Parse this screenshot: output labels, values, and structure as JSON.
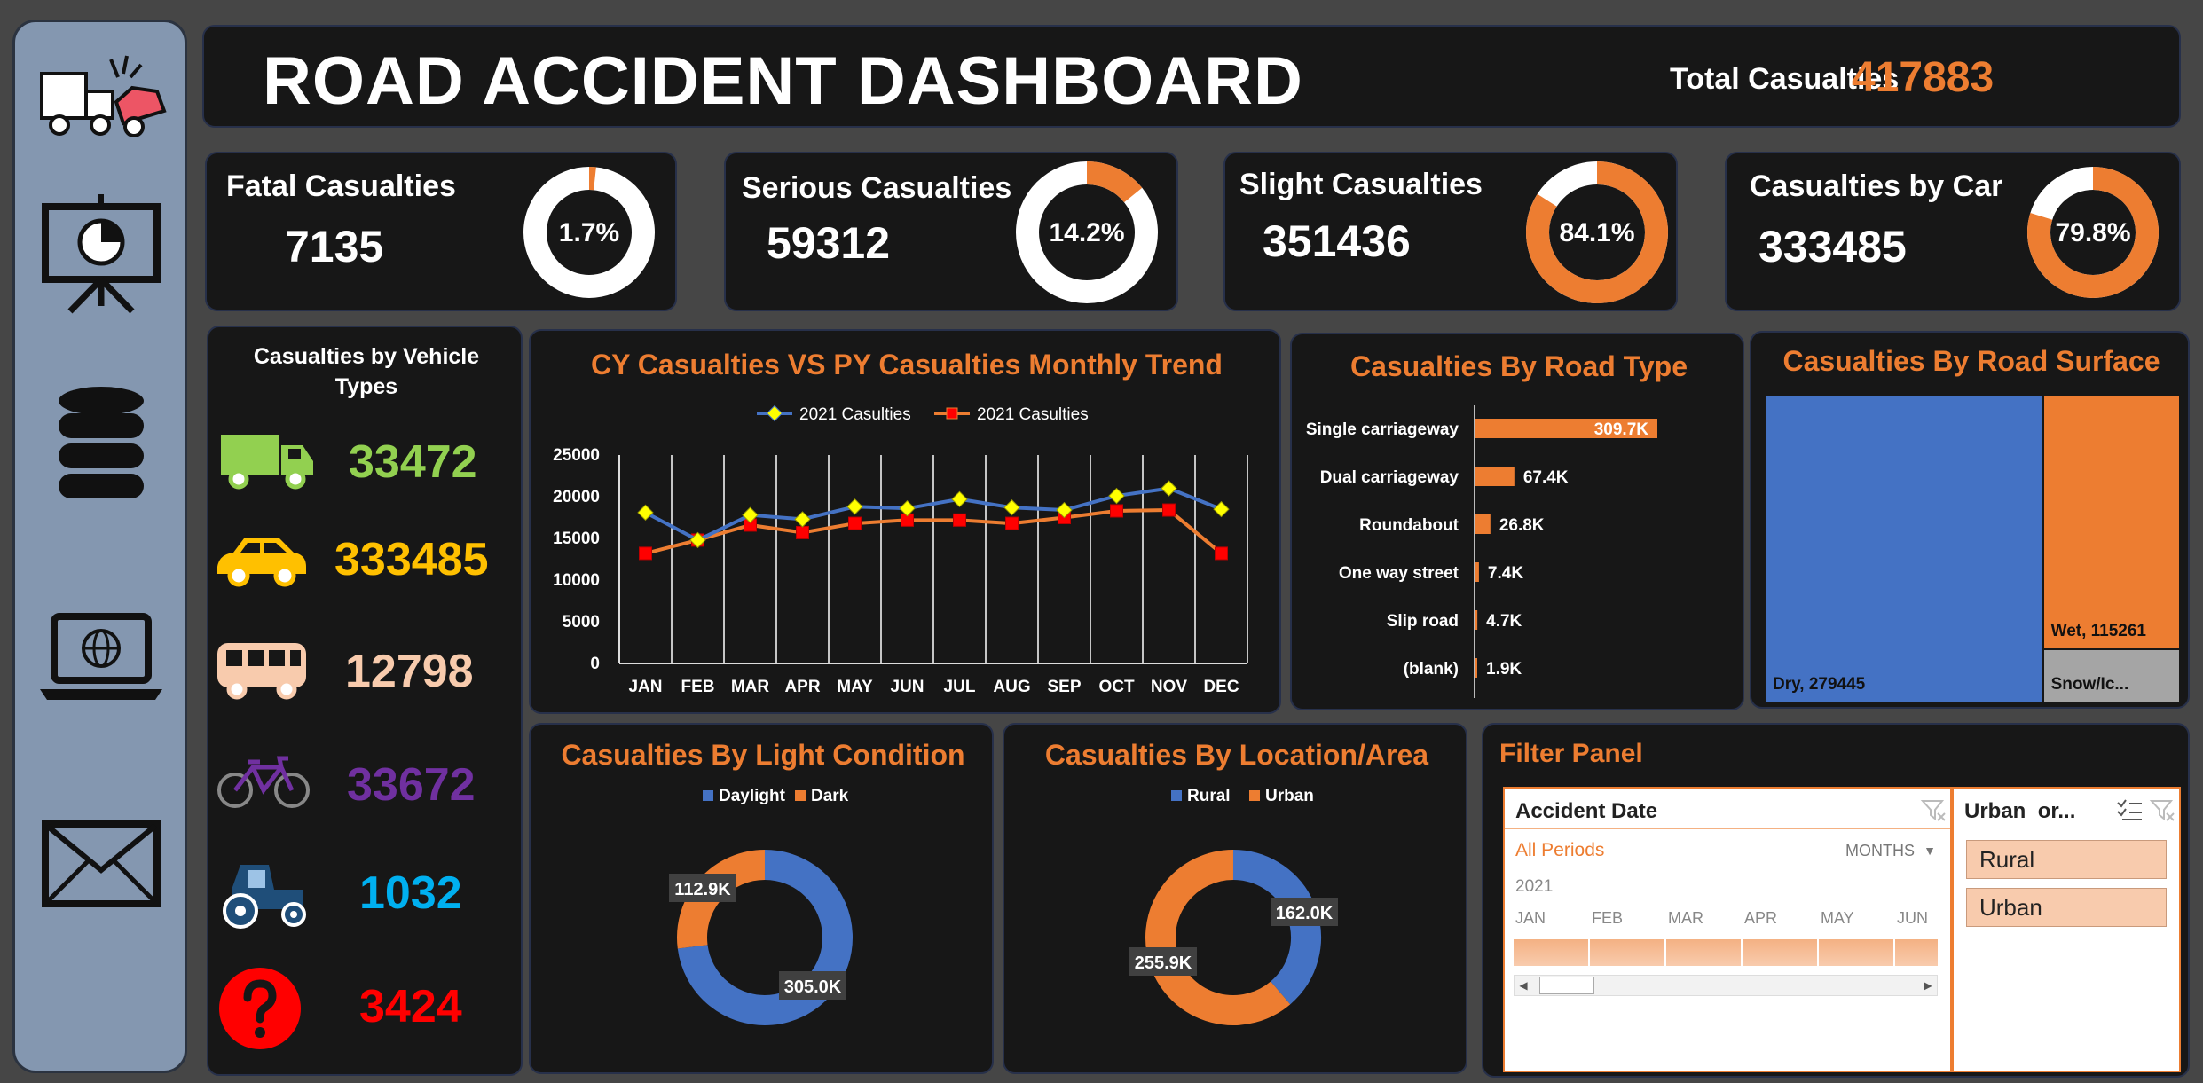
{
  "header": {
    "title": "ROAD ACCIDENT DASHBOARD",
    "total_label": "Total Casualties",
    "total_value": "417883"
  },
  "sidebar": {
    "icons": [
      "car-crash-icon",
      "presentation-chart-icon",
      "database-icon",
      "laptop-globe-icon",
      "mail-icon"
    ]
  },
  "kpis": [
    {
      "label": "Fatal Casualties",
      "value": "7135",
      "pct_label": "1.7%",
      "pct": 0.017,
      "color": "#ED7D31"
    },
    {
      "label": "Serious Casualties",
      "value": "59312",
      "pct_label": "14.2%",
      "pct": 0.142,
      "color": "#ED7D31"
    },
    {
      "label": "Slight Casualties",
      "value": "351436",
      "pct_label": "84.1%",
      "pct": 0.841,
      "color": "#ED7D31"
    },
    {
      "label": "Casualties by Car",
      "value": "333485",
      "pct_label": "79.8%",
      "pct": 0.798,
      "color": "#ED7D31"
    }
  ],
  "vehicles": {
    "title": "Casualties by Vehicle Types",
    "items": [
      {
        "icon": "truck-icon",
        "value": "33472",
        "color": "#92D050"
      },
      {
        "icon": "car-icon",
        "value": "333485",
        "color": "#FFC000"
      },
      {
        "icon": "bus-icon",
        "value": "12798",
        "color": "#F8CBAD"
      },
      {
        "icon": "bicycle-icon",
        "value": "33672",
        "color": "#7030A0"
      },
      {
        "icon": "tractor-icon",
        "value": "1032",
        "color": "#00B0F0"
      },
      {
        "icon": "question-icon",
        "value": "3424",
        "color": "#FF0000"
      }
    ]
  },
  "trend": {
    "title": "CY Casualties VS PY Casualties Monthly Trend",
    "chart_data": {
      "type": "line",
      "categories": [
        "JAN",
        "FEB",
        "MAR",
        "APR",
        "MAY",
        "JUN",
        "JUL",
        "AUG",
        "SEP",
        "OCT",
        "NOV",
        "DEC"
      ],
      "series": [
        {
          "name": "2021 Casulties",
          "color": "#4472C4",
          "marker_color": "#FFFF00",
          "values": [
            18100,
            14800,
            17800,
            17300,
            18800,
            18600,
            19700,
            18700,
            18400,
            20100,
            21000,
            18500
          ]
        },
        {
          "name": "2021 Casulties",
          "color": "#ED7D31",
          "marker_color": "#FF0000",
          "values": [
            13200,
            14800,
            16600,
            15700,
            16800,
            17200,
            17200,
            16800,
            17500,
            18300,
            18400,
            13200
          ]
        }
      ],
      "ylim": [
        0,
        25000
      ],
      "yticks": [
        "0",
        "5000",
        "10000",
        "15000",
        "20000",
        "25000"
      ],
      "grid": "vertical",
      "legend": "top"
    }
  },
  "road_type": {
    "title": "Casualties By Road Type",
    "chart_data": {
      "type": "bar",
      "orientation": "horizontal",
      "categories": [
        "Single carriageway",
        "Dual carriageway",
        "Roundabout",
        "One way street",
        "Slip road",
        "(blank)"
      ],
      "values": [
        309.7,
        67.4,
        26.8,
        7.4,
        4.7,
        1.9
      ],
      "labels": [
        "309.7K",
        "67.4K",
        "26.8K",
        "7.4K",
        "4.7K",
        "1.9K"
      ],
      "color": "#ED7D31"
    }
  },
  "road_surface": {
    "title": "Casualties By Road Surface",
    "chart_data": {
      "type": "treemap",
      "items": [
        {
          "name": "Dry",
          "value": 279445,
          "label": "Dry, 279445",
          "color": "#4472C4"
        },
        {
          "name": "Wet",
          "value": 115261,
          "label": "Wet, 115261",
          "color": "#ED7D31"
        },
        {
          "name": "Snow/Ice",
          "value": 23177,
          "label": "Snow/Ic...",
          "color": "#A5A5A5"
        }
      ]
    }
  },
  "light": {
    "title": "Casualties By Light Condition",
    "chart_data": {
      "type": "pie",
      "categories": [
        "Daylight",
        "Dark"
      ],
      "values": [
        305.0,
        112.9
      ],
      "labels": [
        "305.0K",
        "112.9K"
      ],
      "colors": [
        "#4472C4",
        "#ED7D31"
      ],
      "legend": "top"
    }
  },
  "location": {
    "title": "Casualties By Location/Area",
    "chart_data": {
      "type": "pie",
      "categories": [
        "Rural",
        "Urban"
      ],
      "values": [
        162.0,
        255.9
      ],
      "labels": [
        "162.0K",
        "255.9K"
      ],
      "colors": [
        "#4472C4",
        "#ED7D31"
      ],
      "legend": "top"
    }
  },
  "filter": {
    "title": "Filter Panel",
    "date_slicer": {
      "header": "Accident Date",
      "all_periods": "All Periods",
      "granularity": "MONTHS",
      "year": "2021",
      "months": [
        "JAN",
        "FEB",
        "MAR",
        "APR",
        "MAY",
        "JUN"
      ]
    },
    "area_slicer": {
      "header": "Urban_or...",
      "items": [
        "Rural",
        "Urban"
      ]
    }
  }
}
